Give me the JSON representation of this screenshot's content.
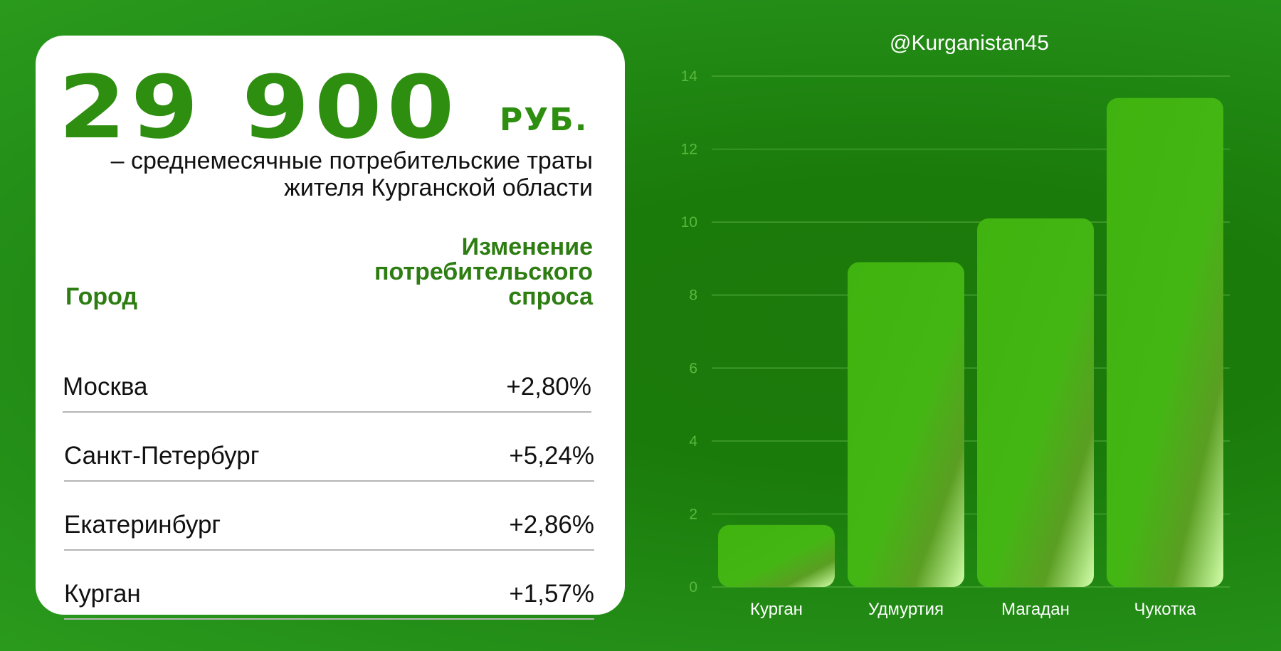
{
  "headline": {
    "value": "29 900",
    "currency": "РУБ.",
    "subtitle": "– среднемесячные потребительские траты жителя Курганской области"
  },
  "table": {
    "col_city": "Город",
    "col_change": "Изменение потребительского спроса",
    "rows": [
      {
        "city": "Москва",
        "change": "+2,80%"
      },
      {
        "city": "Санкт-Петербург",
        "change": "+5,24%"
      },
      {
        "city": "Екатеринбург",
        "change": "+2,86%"
      },
      {
        "city": "Курган",
        "change": "+1,57%"
      }
    ]
  },
  "watermark": "@Kurganistan45",
  "colors": {
    "accent": "#2e8e10",
    "bar": "#42b512",
    "bar_highlight": "#c8ff9e",
    "grid": "#5cb443"
  },
  "chart_data": {
    "type": "bar",
    "categories": [
      "Курган",
      "Удмуртия",
      "Магадан",
      "Чукотка"
    ],
    "values": [
      1.7,
      8.9,
      10.1,
      13.4
    ],
    "ylim": [
      0,
      14
    ],
    "yticks": [
      "0",
      "2",
      "4",
      "6",
      "8",
      "10",
      "12",
      "14"
    ],
    "grid": true,
    "title": "",
    "xlabel": "",
    "ylabel": ""
  }
}
